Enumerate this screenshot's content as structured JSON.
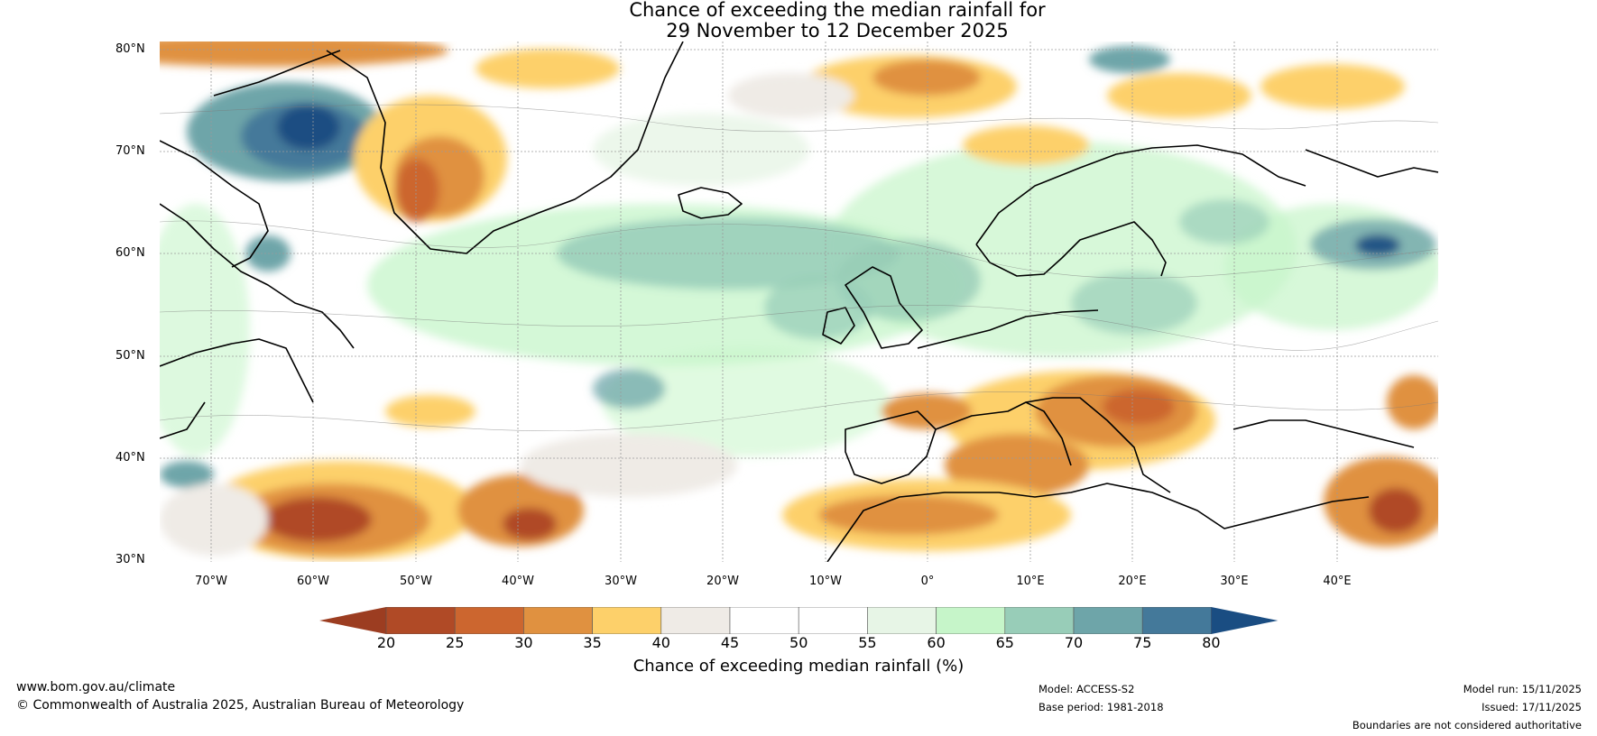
{
  "title": {
    "line1": "Chance of exceeding the median rainfall for",
    "line2": "29 November to 12 December 2025"
  },
  "map": {
    "latitude_labels": [
      "80°N",
      "70°N",
      "60°N",
      "50°N",
      "40°N",
      "30°N"
    ],
    "longitude_labels": [
      "70°W",
      "60°W",
      "50°W",
      "40°W",
      "30°W",
      "20°W",
      "10°W",
      "0°",
      "10°E",
      "20°E",
      "30°E",
      "40°E"
    ]
  },
  "legend": {
    "label": "Chance of exceeding median rainfall (%)",
    "ticks": [
      "20",
      "25",
      "30",
      "35",
      "40",
      "45",
      "50",
      "55",
      "60",
      "65",
      "70",
      "75",
      "80"
    ],
    "colors": [
      "#9c3d21",
      "#b04a26",
      "#cc662f",
      "#e09140",
      "#fdd06a",
      "#efebe6",
      "#ffffff",
      "#ffffff",
      "#e7f5e6",
      "#c6f5c9",
      "#98cdb8",
      "#6ea5a9",
      "#44799a",
      "#1a4d82"
    ]
  },
  "footer": {
    "website": "www.bom.gov.au/climate",
    "copyright": "© Commonwealth of Australia 2025, Australian Bureau of Meteorology",
    "model": "Model: ACCESS-S2",
    "base_period": "Base period: 1981-2018",
    "model_run": "Model run: 15/11/2025",
    "issued": "Issued: 17/11/2025",
    "disclaimer": "Boundaries are not considered authoritative"
  }
}
